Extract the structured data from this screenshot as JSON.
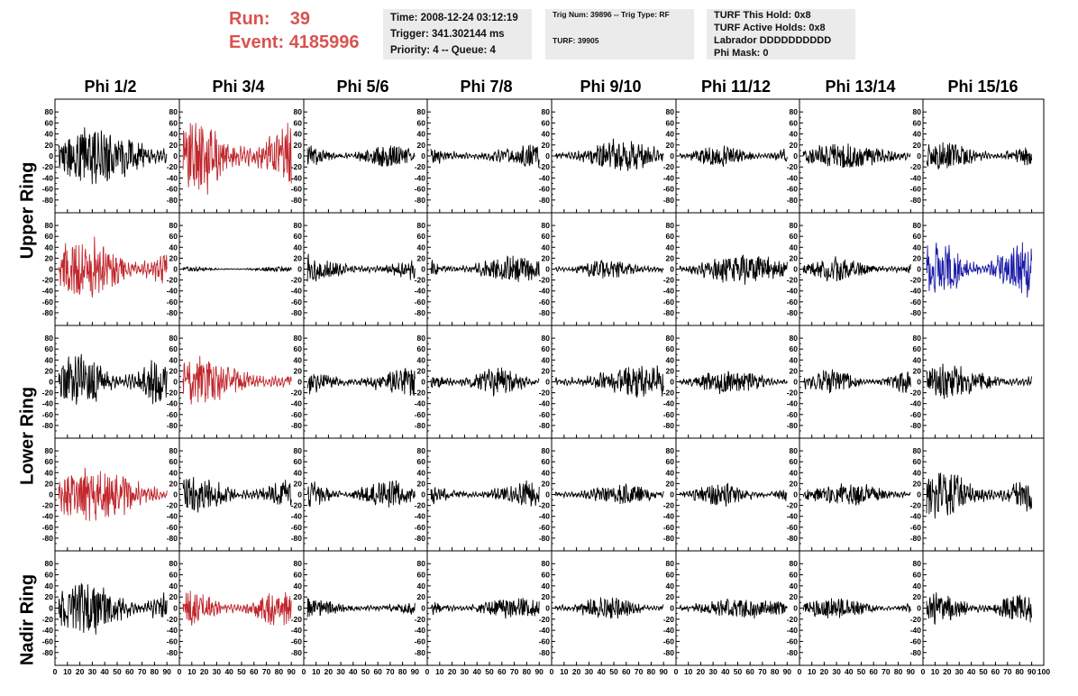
{
  "header": {
    "run_label": "Run:",
    "run_value": "39",
    "event_label": "Event:",
    "event_value": "4185996"
  },
  "info_time": {
    "time": "Time: 2008-12-24 03:12:19",
    "trigger": "Trigger: 341.302144 ms",
    "priority": "Priority: 4 -- Queue: 4"
  },
  "info_trig": {
    "trig": "Trig Num: 39896 -- Trig Type: RF",
    "turf": "TURF: 39905"
  },
  "info_turf": {
    "hold": "TURF This Hold: 0x8",
    "active": "TURF Active Holds: 0x8",
    "labrador": "Labrador DDDDDDDDDD",
    "mask": "Phi Mask: 0"
  },
  "columns": [
    "Phi 1/2",
    "Phi 3/4",
    "Phi 5/6",
    "Phi 7/8",
    "Phi 9/10",
    "Phi 11/12",
    "Phi 13/14",
    "Phi 15/16"
  ],
  "row_labels": [
    "Upper Ring",
    "Lower Ring",
    "Nadir Ring"
  ],
  "colors": {
    "normal": "#000000",
    "triggered": "#c0272d",
    "special": "#1a1aa6"
  },
  "chart_data": {
    "type": "line",
    "rows": 5,
    "cols": 8,
    "xlim": [
      0,
      100
    ],
    "ylim": [
      -95,
      95
    ],
    "x_ticks": [
      0,
      10,
      20,
      30,
      40,
      50,
      60,
      70,
      80,
      90,
      100
    ],
    "x_tick_labels": [
      "0",
      "10",
      "20",
      "30",
      "40",
      "50",
      "60",
      "70",
      "80",
      "90",
      "100"
    ],
    "y_ticks": [
      80,
      60,
      40,
      20,
      0,
      -20,
      -40,
      -60,
      -80
    ],
    "y_tick_labels": [
      "80",
      "60",
      "40",
      "20",
      "0",
      "-20",
      "-40",
      "-60",
      "-80"
    ],
    "panel_colors": [
      [
        "normal",
        "triggered",
        "normal",
        "normal",
        "normal",
        "normal",
        "normal",
        "normal"
      ],
      [
        "triggered",
        "normal",
        "normal",
        "normal",
        "normal",
        "normal",
        "normal",
        "special"
      ],
      [
        "normal",
        "triggered",
        "normal",
        "normal",
        "normal",
        "normal",
        "normal",
        "normal"
      ],
      [
        "triggered",
        "normal",
        "normal",
        "normal",
        "normal",
        "normal",
        "normal",
        "normal"
      ],
      [
        "normal",
        "triggered",
        "normal",
        "normal",
        "normal",
        "normal",
        "normal",
        "normal"
      ]
    ],
    "panel_amplitudes": [
      [
        50,
        65,
        20,
        22,
        28,
        18,
        22,
        25
      ],
      [
        55,
        4,
        25,
        25,
        18,
        25,
        20,
        45
      ],
      [
        45,
        40,
        25,
        25,
        28,
        22,
        22,
        28
      ],
      [
        45,
        30,
        25,
        25,
        18,
        20,
        18,
        42
      ],
      [
        45,
        30,
        18,
        18,
        20,
        18,
        18,
        25
      ]
    ]
  }
}
